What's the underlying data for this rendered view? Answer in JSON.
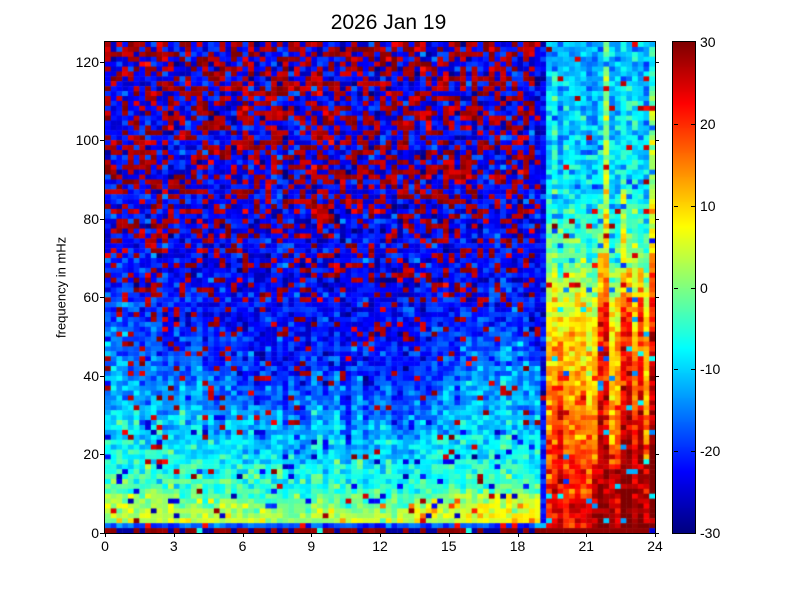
{
  "chart_data": {
    "type": "heatmap",
    "title": "2026 Jan 19",
    "xlabel": "",
    "ylabel": "frequency in mHz",
    "xlim": [
      0,
      24
    ],
    "ylim": [
      0,
      125
    ],
    "x_ticks": [
      0,
      3,
      6,
      9,
      12,
      15,
      18,
      21,
      24
    ],
    "y_ticks": [
      0,
      20,
      40,
      60,
      80,
      100,
      120
    ],
    "grid": false,
    "colorbar": {
      "min": -30,
      "max": 30,
      "ticks": [
        30,
        20,
        10,
        0,
        -10,
        -20,
        -30
      ],
      "colormap": "jet"
    },
    "description": "Noisy dynamic power spectrogram (jet colormap, dB scale -30..30). Before ~19.3 h: frequencies above ~60 mHz are saturated salt-and-pepper dark-red/dark-blue noise; mid frequencies blue; below ~30 mHz cyan, with a yellow-green band below ~10 mHz that warms to orange spots later in the day; bottom rows alternate dark red/dark blue. A dark blue vertical band precedes a sharp transition at ~19.3 h, after which power is strongly enhanced: orange to dark red below ~60 mHz with vertical dark-red streaks, nearly solid dark red below ~18 mHz after ~21 h, and cyan with yellow/red vertical streaks at higher frequencies.",
    "model": {
      "seed": 20260119,
      "cols": 96,
      "rows": 100,
      "transition_t": 19.33,
      "pre": {
        "base_f_points": [
          0,
          3,
          8,
          15,
          30,
          45,
          60,
          75,
          200
        ],
        "base_values": [
          -5,
          4,
          2,
          -4,
          -9,
          -14,
          -19,
          -22,
          -23
        ],
        "cyan_top_base": 60,
        "cyan_top_dip": 25,
        "col_jitter_sd": 5,
        "speckle_f_points": [
          0,
          10,
          20,
          30,
          45,
          60,
          75,
          90,
          125
        ],
        "speckle_probs": [
          0.02,
          0.02,
          0.03,
          0.05,
          0.09,
          0.18,
          0.3,
          0.42,
          0.48
        ],
        "speckle_value": 27,
        "blue_speckle_p": 0.05,
        "orange_spot_p": 0.06,
        "noise_sd": 3.2,
        "dark_band_start": 18.55,
        "dark_col_start": 19.0,
        "late_warm_start": 11,
        "late_warm_rate": 0.5
      },
      "post": {
        "base_f_points": [
          0,
          5,
          15,
          25,
          40,
          55,
          65,
          75,
          90,
          125
        ],
        "base_values": [
          22,
          20,
          18,
          15,
          12,
          8,
          2,
          -4,
          -9,
          -12
        ],
        "yellow_streak_p": 0.14,
        "red_streak_p": 0.24,
        "streak_boost": 9,
        "noise_sd": 3.2,
        "solid_red_t": 21.2,
        "solid_red_f": 18
      },
      "bottom_rows": {
        "row0_red_p_pre": 0.55,
        "row0_red_p_post": 0.85
      }
    }
  }
}
